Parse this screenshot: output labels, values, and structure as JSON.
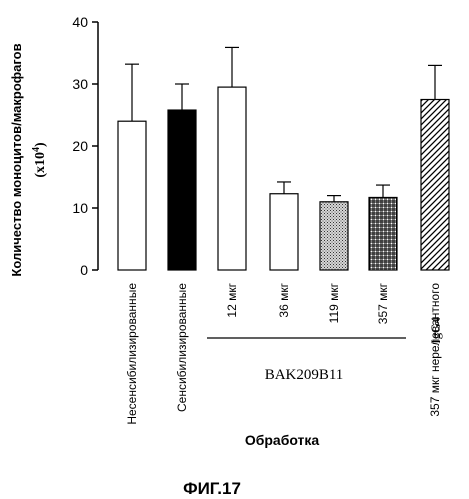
{
  "chart_data": {
    "type": "bar",
    "ylabel": "Количество моноцитов/макрофагов",
    "ylabel_unit_prefix": "(x10",
    "ylabel_unit_exp": "4",
    "ylabel_unit_suffix": ")",
    "ylim": [
      0,
      40
    ],
    "yticks": [
      0,
      10,
      20,
      30,
      40
    ],
    "xlabel": "Обработка",
    "group_label": "BAK209B11",
    "figure_label": "ФИГ.17",
    "categories": [
      "Несенсибилизированные",
      "Сенсибилизированные",
      "12 мкг",
      "36 мкг",
      "119 мкг",
      "357 мкг",
      "357 мкг нерелевантного IgG4"
    ],
    "category_parts": [
      {
        "main": "Несенсибилизированные"
      },
      {
        "main": "Сенсибилизированные"
      },
      {
        "main": "12 мкг"
      },
      {
        "main": "36 мкг"
      },
      {
        "main": "119 мкг"
      },
      {
        "main": "357 мкг"
      },
      {
        "main": "357 мкг нерелевантного",
        "extra": "IgG4"
      }
    ],
    "values": [
      24,
      25.8,
      29.5,
      12.3,
      11,
      11.7,
      27.5
    ],
    "error_upper": [
      33.2,
      30,
      35.9,
      14.2,
      12,
      13.7,
      33
    ],
    "fills": [
      "white",
      "black",
      "white",
      "white",
      "stipple",
      "crosshatch",
      "diagonal"
    ],
    "grid": false
  }
}
